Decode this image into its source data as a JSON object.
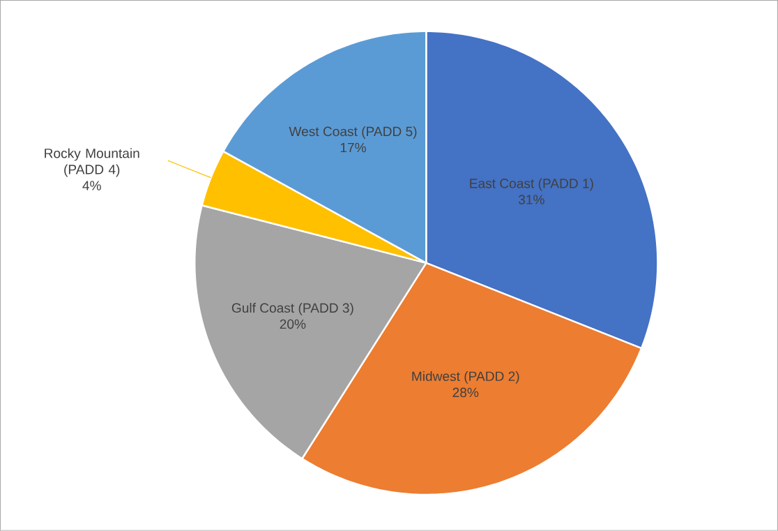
{
  "chart_data": {
    "type": "pie",
    "categories": [
      "East Coast (PADD 1)",
      "Midwest (PADD 2)",
      "Gulf Coast (PADD 3)",
      "Rocky Mountain (PADD 4)",
      "West Coast (PADD 5)"
    ],
    "values": [
      31,
      28,
      20,
      4,
      17
    ],
    "colors": [
      "#4472c4",
      "#ed7d31",
      "#a5a5a5",
      "#ffc000",
      "#5b9bd5"
    ],
    "value_labels": [
      "31%",
      "28%",
      "20%",
      "4%",
      "17%"
    ]
  }
}
